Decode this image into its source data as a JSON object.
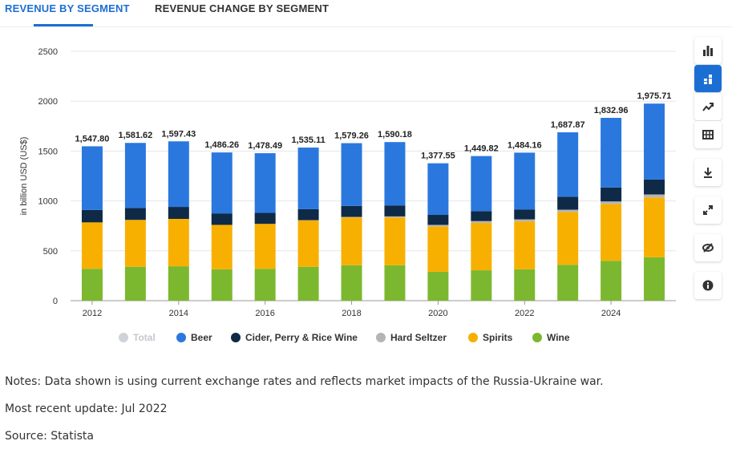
{
  "tabs": {
    "active": "REVENUE BY SEGMENT",
    "inactive": "REVENUE CHANGE BY SEGMENT"
  },
  "sidebar": {
    "buttons": [
      "bar-chart-icon",
      "stacked-chart-icon",
      "trend-icon",
      "table-icon",
      "download-icon",
      "fullscreen-icon",
      "hide-icon",
      "info-icon"
    ],
    "active": "stacked-chart-icon"
  },
  "chart_data": {
    "type": "bar",
    "stacked": true,
    "ylabel": "in billion USD (US$)",
    "ylim": [
      0,
      2500
    ],
    "yticks": [
      0,
      500,
      1000,
      1500,
      2000,
      2500
    ],
    "xticks_shown": [
      "2012",
      "2014",
      "2016",
      "2018",
      "2020",
      "2022",
      "2024"
    ],
    "categories": [
      "2012",
      "2013",
      "2014",
      "2015",
      "2016",
      "2017",
      "2018",
      "2019",
      "2020",
      "2021",
      "2022",
      "2023",
      "2024",
      "2025"
    ],
    "totals": [
      "1,547.80",
      "1,581.62",
      "1,597.43",
      "1,486.26",
      "1,478.49",
      "1,535.11",
      "1,579.26",
      "1,590.18",
      "1,377.55",
      "1,449.82",
      "1,484.16",
      "1,687.87",
      "1,832.96",
      "1,975.71"
    ],
    "series": [
      {
        "name": "Wine",
        "color": "#7cb82f",
        "values": [
          320,
          340,
          345,
          315,
          320,
          340,
          355,
          355,
          290,
          305,
          315,
          360,
          400,
          435
        ]
      },
      {
        "name": "Spirits",
        "color": "#f8b000",
        "values": [
          465,
          470,
          475,
          445,
          450,
          465,
          480,
          480,
          455,
          475,
          480,
          530,
          570,
          600
        ]
      },
      {
        "name": "Hard Seltzer",
        "color": "#b5b5b5",
        "values": [
          0,
          0,
          0,
          0,
          0,
          2,
          5,
          10,
          15,
          18,
          20,
          22,
          25,
          30
        ]
      },
      {
        "name": "Cider, Perry & Rice Wine",
        "color": "#0e2a47",
        "values": [
          125,
          120,
          120,
          115,
          110,
          110,
          110,
          110,
          100,
          100,
          100,
          130,
          140,
          150
        ]
      },
      {
        "name": "Beer",
        "color": "#2a78de",
        "values": [
          637.8,
          651.62,
          657.43,
          611.26,
          598.49,
          618.11,
          629.26,
          635.18,
          517.55,
          551.82,
          569.16,
          645.87,
          697.96,
          760.71
        ]
      }
    ],
    "legend": [
      {
        "name": "Total",
        "color": "#cfd3d8",
        "muted": true
      },
      {
        "name": "Beer",
        "color": "#2a78de"
      },
      {
        "name": "Cider, Perry & Rice Wine",
        "color": "#0e2a47"
      },
      {
        "name": "Hard Seltzer",
        "color": "#b5b5b5"
      },
      {
        "name": "Spirits",
        "color": "#f8b000"
      },
      {
        "name": "Wine",
        "color": "#7cb82f"
      }
    ],
    "legend_position": "bottom",
    "grid": true
  },
  "notes": {
    "note": "Notes: Data shown is using current exchange rates and reflects market impacts of the Russia-Ukraine war.",
    "update": "Most recent update: Jul 2022",
    "source": "Source: Statista"
  }
}
